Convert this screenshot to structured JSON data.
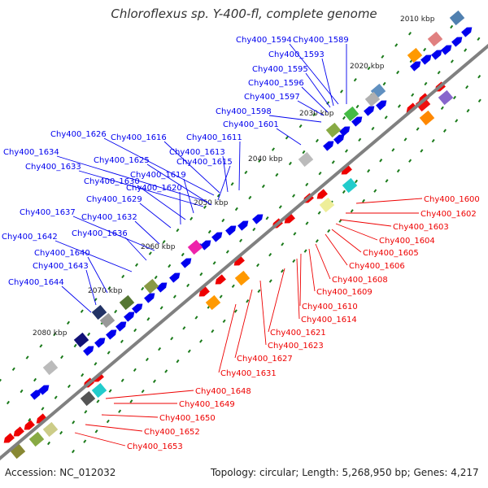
{
  "title": "Chloroflexus sp. Y-400-fl, complete genome",
  "footer": {
    "accession": "Accession: NC_012032",
    "summary": "Topology: circular; Length: 5,268,950 bp; Genes: 4,217"
  },
  "colors": {
    "forward": "#0000ee",
    "reverse": "#ee0000",
    "backbone": "#808080",
    "tick": "#1a7a1a"
  },
  "kbp_labels": [
    "2010 kbp",
    "2020 kbp",
    "2030 kbp",
    "2040 kbp",
    "2050 kbp",
    "2060 kbp",
    "2070 kbp",
    "2080 kbp"
  ],
  "forward_genes": [
    "Chy400_1594",
    "Chy400_1589",
    "Chy400_1593",
    "Chy400_1595",
    "Chy400_1596",
    "Chy400_1597",
    "Chy400_1598",
    "Chy400_1601",
    "Chy400_1626",
    "Chy400_1616",
    "Chy400_1611",
    "Chy400_1634",
    "Chy400_1625",
    "Chy400_1613",
    "Chy400_1633",
    "Chy400_1615",
    "Chy400_1619",
    "Chy400_1630",
    "Chy400_1620",
    "Chy400_1629",
    "Chy400_1637",
    "Chy400_1632",
    "Chy400_1642",
    "Chy400_1636",
    "Chy400_1640",
    "Chy400_1643",
    "Chy400_1644"
  ],
  "reverse_genes": [
    "Chy400_1600",
    "Chy400_1602",
    "Chy400_1603",
    "Chy400_1604",
    "Chy400_1605",
    "Chy400_1606",
    "Chy400_1608",
    "Chy400_1609",
    "Chy400_1610",
    "Chy400_1614",
    "Chy400_1621",
    "Chy400_1623",
    "Chy400_1627",
    "Chy400_1631",
    "Chy400_1648",
    "Chy400_1649",
    "Chy400_1650",
    "Chy400_1652",
    "Chy400_1653"
  ]
}
